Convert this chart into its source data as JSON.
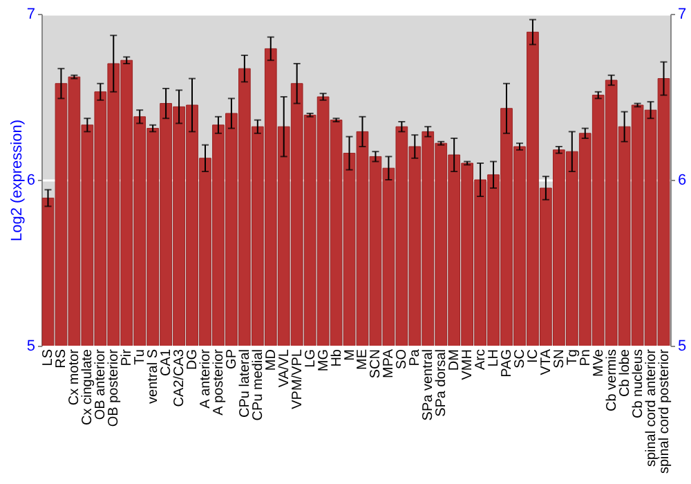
{
  "chart_data": {
    "type": "bar",
    "ylabel": "Log2 (expression)",
    "categories": [
      "LS",
      "RS",
      "Cx motor",
      "Cx cingulate",
      "OB anterior",
      "OB posterior",
      "Pir",
      "Tu",
      "ventral S",
      "CA1",
      "CA2/CA3",
      "DG",
      "A anterior",
      "A posterior",
      "GP",
      "CPu lateral",
      "CPu medial",
      "MD",
      "VA/VL",
      "VPM/VPL",
      "LG",
      "MG",
      "Hb",
      "M",
      "ME",
      "SCN",
      "MPA",
      "SO",
      "Pa",
      "SPa ventral",
      "SPa dorsal",
      "DM",
      "VMH",
      "Arc",
      "LH",
      "PAG",
      "SC",
      "IC",
      "VTA",
      "SN",
      "Tg",
      "Pn",
      "MVe",
      "Cb vermis",
      "Cb lobe",
      "Cb nucleus",
      "spinal cord anterior",
      "spinal cord posterior"
    ],
    "values": [
      5.89,
      6.58,
      6.62,
      6.33,
      6.53,
      6.7,
      6.72,
      6.38,
      6.31,
      6.46,
      6.44,
      6.45,
      6.13,
      6.33,
      6.4,
      6.67,
      6.32,
      6.79,
      6.32,
      6.58,
      6.39,
      6.5,
      6.36,
      6.16,
      6.29,
      6.14,
      6.07,
      6.32,
      6.2,
      6.29,
      6.22,
      6.15,
      6.1,
      6.0,
      6.03,
      6.43,
      6.2,
      6.89,
      5.95,
      6.18,
      6.17,
      6.28,
      6.51,
      6.6,
      6.32,
      6.45,
      6.42,
      6.61
    ],
    "errors": [
      0.05,
      0.09,
      0.01,
      0.04,
      0.05,
      0.17,
      0.02,
      0.04,
      0.02,
      0.09,
      0.1,
      0.16,
      0.08,
      0.05,
      0.09,
      0.08,
      0.04,
      0.07,
      0.18,
      0.12,
      0.01,
      0.02,
      0.01,
      0.1,
      0.09,
      0.03,
      0.07,
      0.03,
      0.07,
      0.03,
      0.01,
      0.1,
      0.01,
      0.1,
      0.08,
      0.15,
      0.02,
      0.075,
      0.07,
      0.02,
      0.12,
      0.03,
      0.02,
      0.03,
      0.09,
      0.01,
      0.05,
      0.1
    ],
    "color": "#b83232",
    "ylim": [
      5,
      7
    ],
    "yticks": [
      5,
      6,
      7
    ],
    "y2lim": [
      5,
      7
    ],
    "y2ticks": [
      5,
      6,
      7
    ],
    "grid": "y"
  }
}
